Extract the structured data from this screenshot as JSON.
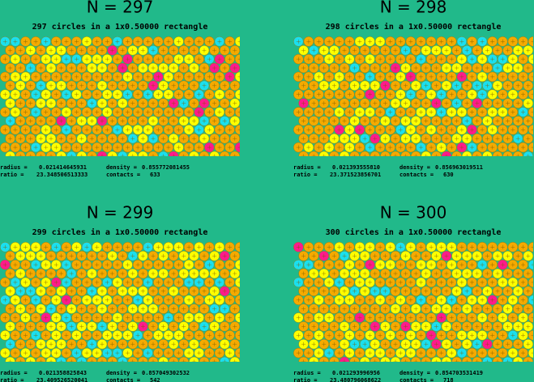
{
  "labels": {
    "radius": "radius =",
    "density": "density =",
    "ratio": "ratio  =",
    "contacts": "contacts ="
  },
  "panels": [
    {
      "title": "N = 297",
      "subtitle": "297 circles in a 1x0.50000 rectangle",
      "radius": "0.021414645931",
      "density": "0.855772081455",
      "ratio": "23.348506513333",
      "contacts": "633"
    },
    {
      "title": "N = 298",
      "subtitle": "298 circles in a 1x0.50000 rectangle",
      "radius": "0.021393555810",
      "density": "0.856963019511",
      "ratio": "23.371523856701",
      "contacts": "630"
    },
    {
      "title": "N = 299",
      "subtitle": "299 circles in a 1x0.50000 rectangle",
      "radius": "0.021358825843",
      "density": "0.857049302532",
      "ratio": "23.409526520041",
      "contacts": "542"
    },
    {
      "title": "N = 300",
      "subtitle": "300 circles in a 1x0.50000 rectangle",
      "radius": "0.021293996956",
      "density": "0.854703531419",
      "ratio": "23.480796068622",
      "contacts": "718"
    }
  ]
}
